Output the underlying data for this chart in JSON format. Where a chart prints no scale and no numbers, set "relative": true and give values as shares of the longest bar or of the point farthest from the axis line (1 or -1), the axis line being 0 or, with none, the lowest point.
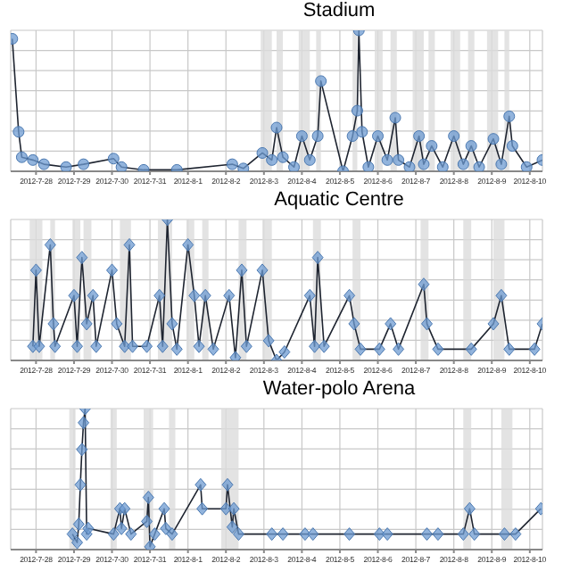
{
  "chart_data": [
    {
      "type": "line",
      "title": "Stadium",
      "relative": true,
      "grid": true,
      "marker": "circle",
      "color": "#6d9bd1",
      "xlim": [
        "2012-07-27T08:00",
        "2012-08-10T08:00"
      ],
      "xticks": [
        {
          "value": "2012-07-28",
          "label": "2012-7-28"
        },
        {
          "value": "2012-07-29",
          "label": "2012-7-29"
        },
        {
          "value": "2012-07-30",
          "label": "2012-7-30"
        },
        {
          "value": "2012-07-31",
          "label": "2012-7-31"
        },
        {
          "value": "2012-08-01",
          "label": "2012-8-1"
        },
        {
          "value": "2012-08-02",
          "label": "2012-8-2"
        },
        {
          "value": "2012-08-03",
          "label": "2012-8-3"
        },
        {
          "value": "2012-08-04",
          "label": "2012-8-4"
        },
        {
          "value": "2012-08-05",
          "label": "2012-8-5"
        },
        {
          "value": "2012-08-06",
          "label": "2012-8-6"
        },
        {
          "value": "2012-08-07",
          "label": "2012-8-7"
        },
        {
          "value": "2012-08-08",
          "label": "2012-8-8"
        },
        {
          "value": "2012-08-09",
          "label": "2012-8-9"
        },
        {
          "value": "2012-08-10",
          "label": "2012-8-10"
        }
      ],
      "x": [
        "2012-07-27T09:00",
        "2012-07-27T13:00",
        "2012-07-27T15:00",
        "2012-07-27T22:00",
        "2012-07-28T05:00",
        "2012-07-28T19:00",
        "2012-07-29T06:00",
        "2012-07-30T01:00",
        "2012-07-30T06:00",
        "2012-07-30T20:00",
        "2012-07-31T17:00",
        "2012-08-02T04:00",
        "2012-08-02T11:00",
        "2012-08-02T23:00",
        "2012-08-03T05:00",
        "2012-08-03T08:00",
        "2012-08-03T12:00",
        "2012-08-03T19:00",
        "2012-08-04T00:00",
        "2012-08-04T05:00",
        "2012-08-04T10:00",
        "2012-08-04T12:00",
        "2012-08-05T02:00",
        "2012-08-05T08:00",
        "2012-08-05T11:00",
        "2012-08-05T12:00",
        "2012-08-05T14:00",
        "2012-08-05T18:00",
        "2012-08-06T00:00",
        "2012-08-06T06:00",
        "2012-08-06T11:00",
        "2012-08-06T13:00",
        "2012-08-06T20:00",
        "2012-08-07T02:00",
        "2012-08-07T05:00",
        "2012-08-07T10:00",
        "2012-08-07T17:00",
        "2012-08-08T00:00",
        "2012-08-08T06:00",
        "2012-08-08T11:00",
        "2012-08-08T16:00",
        "2012-08-09T01:00",
        "2012-08-09T06:00",
        "2012-08-09T11:00",
        "2012-08-09T13:00",
        "2012-08-09T22:00",
        "2012-08-10T08:00"
      ],
      "values": [
        0.94,
        0.28,
        0.1,
        0.08,
        0.05,
        0.03,
        0.05,
        0.09,
        0.03,
        0.01,
        0.01,
        0.05,
        0.02,
        0.13,
        0.08,
        0.31,
        0.1,
        0.03,
        0.25,
        0.08,
        0.25,
        0.64,
        0,
        0.25,
        0.43,
        1,
        0.28,
        0.03,
        0.25,
        0.08,
        0.38,
        0.08,
        0.03,
        0.25,
        0.05,
        0.18,
        0.03,
        0.25,
        0.05,
        0.18,
        0.03,
        0.23,
        0.05,
        0.39,
        0.18,
        0.03,
        0.08
      ],
      "bands": [
        {
          "axis": "x",
          "from": "2012-08-02T22:00",
          "to": "2012-08-03T05:00",
          "color": "#dcdcdc"
        },
        {
          "axis": "x",
          "from": "2012-08-03T08:00",
          "to": "2012-08-03T12:00",
          "color": "#dcdcdc"
        },
        {
          "axis": "x",
          "from": "2012-08-03T22:00",
          "to": "2012-08-04T05:00",
          "color": "#dcdcdc"
        },
        {
          "axis": "x",
          "from": "2012-08-04T09:00",
          "to": "2012-08-04T12:00",
          "color": "#dcdcdc"
        },
        {
          "axis": "x",
          "from": "2012-08-05T08:00",
          "to": "2012-08-05T11:00",
          "color": "#dcdcdc"
        },
        {
          "axis": "x",
          "from": "2012-08-05T22:00",
          "to": "2012-08-06T03:00",
          "color": "#dcdcdc"
        },
        {
          "axis": "x",
          "from": "2012-08-06T08:00",
          "to": "2012-08-06T12:00",
          "color": "#dcdcdc"
        },
        {
          "axis": "x",
          "from": "2012-08-06T22:00",
          "to": "2012-08-07T05:00",
          "color": "#dcdcdc"
        },
        {
          "axis": "x",
          "from": "2012-08-07T08:00",
          "to": "2012-08-07T12:00",
          "color": "#dcdcdc"
        },
        {
          "axis": "x",
          "from": "2012-08-07T22:00",
          "to": "2012-08-08T04:00",
          "color": "#dcdcdc"
        },
        {
          "axis": "x",
          "from": "2012-08-08T09:00",
          "to": "2012-08-08T13:00",
          "color": "#dcdcdc"
        },
        {
          "axis": "x",
          "from": "2012-08-08T21:00",
          "to": "2012-08-09T04:00",
          "color": "#dcdcdc"
        },
        {
          "axis": "x",
          "from": "2012-08-09T08:00",
          "to": "2012-08-09T11:00",
          "color": "#dcdcdc"
        }
      ]
    },
    {
      "type": "line",
      "title": "Aquatic Centre",
      "relative": true,
      "grid": true,
      "marker": "diamond",
      "color": "#6d9bd1",
      "xlim": [
        "2012-07-27T08:00",
        "2012-08-10T08:00"
      ],
      "xticks": [
        {
          "value": "2012-07-28",
          "label": "2012-7-28"
        },
        {
          "value": "2012-07-29",
          "label": "2012-7-29"
        },
        {
          "value": "2012-07-30",
          "label": "2012-7-30"
        },
        {
          "value": "2012-07-31",
          "label": "2012-7-31"
        },
        {
          "value": "2012-08-01",
          "label": "2012-8-1"
        },
        {
          "value": "2012-08-02",
          "label": "2012-8-2"
        },
        {
          "value": "2012-08-03",
          "label": "2012-8-3"
        },
        {
          "value": "2012-08-04",
          "label": "2012-8-4"
        },
        {
          "value": "2012-08-05",
          "label": "2012-8-5"
        },
        {
          "value": "2012-08-06",
          "label": "2012-8-6"
        },
        {
          "value": "2012-08-07",
          "label": "2012-8-7"
        },
        {
          "value": "2012-08-08",
          "label": "2012-8-8"
        },
        {
          "value": "2012-08-09",
          "label": "2012-8-9"
        },
        {
          "value": "2012-08-10",
          "label": "2012-8-10"
        }
      ],
      "x": [
        "2012-07-27T22:00",
        "2012-07-28T00:00",
        "2012-07-28T02:00",
        "2012-07-28T09:00",
        "2012-07-28T11:00",
        "2012-07-28T12:00",
        "2012-07-29T00:00",
        "2012-07-29T02:00",
        "2012-07-29T05:00",
        "2012-07-29T08:00",
        "2012-07-29T12:00",
        "2012-07-29T14:00",
        "2012-07-30T00:00",
        "2012-07-30T03:00",
        "2012-07-30T08:00",
        "2012-07-30T11:00",
        "2012-07-30T13:00",
        "2012-07-30T22:00",
        "2012-07-31T06:00",
        "2012-07-31T08:00",
        "2012-07-31T11:00",
        "2012-07-31T14:00",
        "2012-07-31T17:00",
        "2012-08-01T00:00",
        "2012-08-01T04:00",
        "2012-08-01T07:00",
        "2012-08-01T11:00",
        "2012-08-01T16:00",
        "2012-08-02T02:00",
        "2012-08-02T06:00",
        "2012-08-02T10:00",
        "2012-08-02T13:00",
        "2012-08-02T23:00",
        "2012-08-03T03:00",
        "2012-08-03T08:00",
        "2012-08-03T13:00",
        "2012-08-04T05:00",
        "2012-08-04T08:00",
        "2012-08-04T10:00",
        "2012-08-04T14:00",
        "2012-08-05T06:00",
        "2012-08-05T09:00",
        "2012-08-05T13:00",
        "2012-08-06T01:00",
        "2012-08-06T08:00",
        "2012-08-06T13:00",
        "2012-08-07T05:00",
        "2012-08-07T07:00",
        "2012-08-07T14:00",
        "2012-08-08T11:00",
        "2012-08-09T01:00",
        "2012-08-09T06:00",
        "2012-08-09T11:00",
        "2012-08-10T03:00",
        "2012-08-10T08:00"
      ],
      "values": [
        0.1,
        0.64,
        0.1,
        0.82,
        0.26,
        0.1,
        0.46,
        0.1,
        0.73,
        0.26,
        0.46,
        0.1,
        0.64,
        0.26,
        0.1,
        0.82,
        0.1,
        0.1,
        0.46,
        0.1,
        1,
        0.26,
        0.08,
        0.82,
        0.46,
        0.1,
        0.46,
        0.08,
        0.46,
        0.02,
        0.64,
        0.1,
        0.64,
        0.14,
        0,
        0.06,
        0.46,
        0.1,
        0.73,
        0.1,
        0.46,
        0.26,
        0.08,
        0.08,
        0.26,
        0.08,
        0.54,
        0.26,
        0.08,
        0.08,
        0.26,
        0.46,
        0.08,
        0.08,
        0.26
      ],
      "bands": [
        {
          "axis": "x",
          "from": "2012-07-27T20:00",
          "to": "2012-07-28T04:00",
          "color": "#dcdcdc"
        },
        {
          "axis": "x",
          "from": "2012-07-28T09:00",
          "to": "2012-07-28T12:00",
          "color": "#dcdcdc"
        },
        {
          "axis": "x",
          "from": "2012-07-28T23:00",
          "to": "2012-07-29T04:00",
          "color": "#dcdcdc"
        },
        {
          "axis": "x",
          "from": "2012-07-29T06:00",
          "to": "2012-07-29T11:00",
          "color": "#dcdcdc"
        },
        {
          "axis": "x",
          "from": "2012-07-30T05:00",
          "to": "2012-07-30T12:00",
          "color": "#dcdcdc"
        },
        {
          "axis": "x",
          "from": "2012-07-31T05:00",
          "to": "2012-07-31T14:00",
          "color": "#dcdcdc"
        },
        {
          "axis": "x",
          "from": "2012-07-31T23:00",
          "to": "2012-08-01T04:00",
          "color": "#dcdcdc"
        },
        {
          "axis": "x",
          "from": "2012-08-01T09:00",
          "to": "2012-08-01T13:00",
          "color": "#dcdcdc"
        },
        {
          "axis": "x",
          "from": "2012-08-02T08:00",
          "to": "2012-08-02T13:00",
          "color": "#dcdcdc"
        },
        {
          "axis": "x",
          "from": "2012-08-02T23:00",
          "to": "2012-08-03T05:00",
          "color": "#dcdcdc"
        },
        {
          "axis": "x",
          "from": "2012-08-04T07:00",
          "to": "2012-08-04T12:00",
          "color": "#dcdcdc"
        },
        {
          "axis": "x",
          "from": "2012-08-05T08:00",
          "to": "2012-08-05T13:00",
          "color": "#dcdcdc"
        },
        {
          "axis": "x",
          "from": "2012-08-07T03:00",
          "to": "2012-08-07T08:00",
          "color": "#dcdcdc"
        },
        {
          "axis": "x",
          "from": "2012-08-08T06:00",
          "to": "2012-08-08T11:00",
          "color": "#dcdcdc"
        },
        {
          "axis": "x",
          "from": "2012-08-09T01:00",
          "to": "2012-08-09T08:00",
          "color": "#dcdcdc"
        }
      ]
    },
    {
      "type": "line",
      "title": "Water-polo Arena",
      "relative": true,
      "grid": true,
      "marker": "diamond",
      "color": "#6d9bd1",
      "xlim": [
        "2012-07-27T08:00",
        "2012-08-10T08:00"
      ],
      "xticks": [
        {
          "value": "2012-07-28",
          "label": "2012-7-28"
        },
        {
          "value": "2012-07-29",
          "label": "2012-7-29"
        },
        {
          "value": "2012-07-30",
          "label": "2012-7-30"
        },
        {
          "value": "2012-07-31",
          "label": "2012-7-31"
        },
        {
          "value": "2012-08-01",
          "label": "2012-8-1"
        },
        {
          "value": "2012-08-02",
          "label": "2012-8-2"
        },
        {
          "value": "2012-08-03",
          "label": "2012-8-3"
        },
        {
          "value": "2012-08-04",
          "label": "2012-8-4"
        },
        {
          "value": "2012-08-05",
          "label": "2012-8-5"
        },
        {
          "value": "2012-08-06",
          "label": "2012-8-6"
        },
        {
          "value": "2012-08-07",
          "label": "2012-8-7"
        },
        {
          "value": "2012-08-08",
          "label": "2012-8-8"
        },
        {
          "value": "2012-08-09",
          "label": "2012-8-9"
        },
        {
          "value": "2012-08-10",
          "label": "2012-8-10"
        }
      ],
      "x": [
        "2012-07-28T23:00",
        "2012-07-29T02:00",
        "2012-07-29T03:00",
        "2012-07-29T04:00",
        "2012-07-29T05:00",
        "2012-07-29T06:00",
        "2012-07-29T07:00",
        "2012-07-29T08:00",
        "2012-07-29T09:00",
        "2012-07-30T01:00",
        "2012-07-30T05:00",
        "2012-07-30T06:00",
        "2012-07-30T08:00",
        "2012-07-30T12:00",
        "2012-07-30T22:00",
        "2012-07-30T23:00",
        "2012-07-31T00:00",
        "2012-07-31T03:00",
        "2012-07-31T09:00",
        "2012-07-31T10:00",
        "2012-07-31T14:00",
        "2012-08-01T08:00",
        "2012-08-01T09:00",
        "2012-08-02T00:00",
        "2012-08-02T01:00",
        "2012-08-02T04:00",
        "2012-08-02T05:00",
        "2012-08-02T08:00",
        "2012-08-03T05:00",
        "2012-08-03T12:00",
        "2012-08-04T02:00",
        "2012-08-04T07:00",
        "2012-08-05T06:00",
        "2012-08-06T01:00",
        "2012-08-06T06:00",
        "2012-08-07T07:00",
        "2012-08-07T14:00",
        "2012-08-08T06:00",
        "2012-08-08T10:00",
        "2012-08-08T13:00",
        "2012-08-09T08:00",
        "2012-08-09T15:00",
        "2012-08-10T07:00"
      ],
      "values": [
        0.11,
        0.05,
        0.18,
        0.46,
        0.71,
        0.9,
        1,
        0.11,
        0.15,
        0.11,
        0.29,
        0.15,
        0.29,
        0.11,
        0.2,
        0.37,
        0.02,
        0.11,
        0.29,
        0.15,
        0.11,
        0.46,
        0.29,
        0.29,
        0.46,
        0.16,
        0.29,
        0.11,
        0.11,
        0.11,
        0.11,
        0.11,
        0.11,
        0.11,
        0.11,
        0.11,
        0.11,
        0.11,
        0.29,
        0.11,
        0.11,
        0.11,
        0.29
      ],
      "bands": [
        {
          "axis": "x",
          "from": "2012-07-28T21:00",
          "to": "2012-07-29T01:00",
          "color": "#dcdcdc"
        },
        {
          "axis": "x",
          "from": "2012-07-29T23:00",
          "to": "2012-07-30T03:00",
          "color": "#dcdcdc"
        },
        {
          "axis": "x",
          "from": "2012-07-30T20:00",
          "to": "2012-07-31T02:00",
          "color": "#dcdcdc"
        },
        {
          "axis": "x",
          "from": "2012-07-31T12:00",
          "to": "2012-07-31T16:00",
          "color": "#dcdcdc"
        },
        {
          "axis": "x",
          "from": "2012-08-01T21:00",
          "to": "2012-08-02T08:00",
          "color": "#dcdcdc"
        },
        {
          "axis": "x",
          "from": "2012-08-08T06:00",
          "to": "2012-08-08T11:00",
          "color": "#dcdcdc"
        },
        {
          "axis": "x",
          "from": "2012-08-09T06:00",
          "to": "2012-08-09T13:00",
          "color": "#dcdcdc"
        }
      ]
    }
  ]
}
